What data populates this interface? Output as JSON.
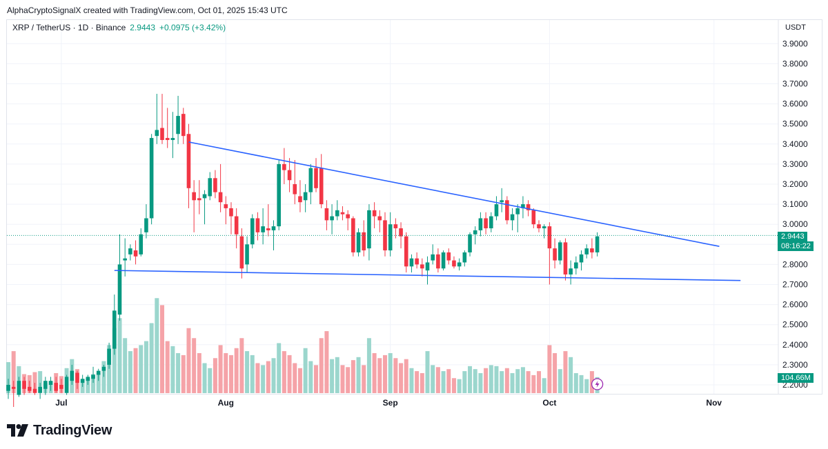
{
  "header": {
    "credit": "AlphaCryptoSignalX created with TradingView.com, Oct 01, 2025 15:43 UTC"
  },
  "legend": {
    "symbol": "XRP / TetherUS · 1D · Binance",
    "price": "2.9443",
    "change": "+0.0975 (+3.42%)"
  },
  "axis": {
    "currency": "USDT",
    "price_badge": "2.9443",
    "countdown_badge": "08:16:22",
    "volume_badge": "104.66M"
  },
  "branding": {
    "logo_text": "TradingView"
  },
  "colors": {
    "up": "#089981",
    "down": "#f23645",
    "up_volume": "#9bd6cd",
    "down_volume": "#f5a3a8",
    "trendline": "#2962ff",
    "grid": "#f0f3fa"
  },
  "chart_data": {
    "type": "candlestick",
    "title": "XRP / TetherUS · 1D · Binance",
    "y_ticks": [
      "3.9000",
      "3.8000",
      "3.7000",
      "3.6000",
      "3.5000",
      "3.4000",
      "3.3000",
      "3.2000",
      "3.1000",
      "3.0000",
      "2.9000",
      "2.8000",
      "2.7000",
      "2.6000",
      "2.5000",
      "2.4000",
      "2.3000",
      "2.2000"
    ],
    "x_ticks": [
      "Jul",
      "Aug",
      "Sep",
      "Oct",
      "Nov"
    ],
    "ylim": [
      2.2,
      3.95
    ],
    "start_date": "2025-06-21",
    "candles": [
      {
        "date": "2025-06-21",
        "o": 2.17,
        "h": 2.23,
        "l": 2.13,
        "c": 2.2,
        "v": 31
      },
      {
        "date": "2025-06-22",
        "o": 2.19,
        "h": 2.22,
        "l": 2.09,
        "c": 2.18,
        "v": 42
      },
      {
        "date": "2025-06-23",
        "o": 2.15,
        "h": 2.24,
        "l": 2.14,
        "c": 2.22,
        "v": 27
      },
      {
        "date": "2025-06-24",
        "o": 2.22,
        "h": 2.24,
        "l": 2.15,
        "c": 2.18,
        "v": 19
      },
      {
        "date": "2025-06-25",
        "o": 2.19,
        "h": 2.22,
        "l": 2.16,
        "c": 2.17,
        "v": 18
      },
      {
        "date": "2025-06-26",
        "o": 2.18,
        "h": 2.21,
        "l": 2.15,
        "c": 2.16,
        "v": 21
      },
      {
        "date": "2025-06-27",
        "o": 2.16,
        "h": 2.21,
        "l": 2.13,
        "c": 2.19,
        "v": 22
      },
      {
        "date": "2025-06-28",
        "o": 2.18,
        "h": 2.24,
        "l": 2.15,
        "c": 2.22,
        "v": 10
      },
      {
        "date": "2025-06-29",
        "o": 2.2,
        "h": 2.24,
        "l": 2.17,
        "c": 2.22,
        "v": 12
      },
      {
        "date": "2025-06-30",
        "o": 2.21,
        "h": 2.24,
        "l": 2.16,
        "c": 2.17,
        "v": 20
      },
      {
        "date": "2025-07-01",
        "o": 2.2,
        "h": 2.23,
        "l": 2.16,
        "c": 2.18,
        "v": 17
      },
      {
        "date": "2025-07-02",
        "o": 2.16,
        "h": 2.25,
        "l": 2.15,
        "c": 2.24,
        "v": 25
      },
      {
        "date": "2025-07-03",
        "o": 2.22,
        "h": 2.3,
        "l": 2.2,
        "c": 2.27,
        "v": 34
      },
      {
        "date": "2025-07-04",
        "o": 2.26,
        "h": 2.27,
        "l": 2.18,
        "c": 2.21,
        "v": 24
      },
      {
        "date": "2025-07-05",
        "o": 2.21,
        "h": 2.25,
        "l": 2.19,
        "c": 2.23,
        "v": 14
      },
      {
        "date": "2025-07-06",
        "o": 2.22,
        "h": 2.25,
        "l": 2.2,
        "c": 2.24,
        "v": 15
      },
      {
        "date": "2025-07-07",
        "o": 2.23,
        "h": 2.29,
        "l": 2.21,
        "c": 2.25,
        "v": 19
      },
      {
        "date": "2025-07-08",
        "o": 2.25,
        "h": 2.28,
        "l": 2.22,
        "c": 2.27,
        "v": 20
      },
      {
        "date": "2025-07-09",
        "o": 2.27,
        "h": 2.3,
        "l": 2.24,
        "c": 2.29,
        "v": 32
      },
      {
        "date": "2025-07-10",
        "o": 2.3,
        "h": 2.41,
        "l": 2.28,
        "c": 2.38,
        "v": 48
      },
      {
        "date": "2025-07-11",
        "o": 2.38,
        "h": 2.65,
        "l": 2.35,
        "c": 2.57,
        "v": 65
      },
      {
        "date": "2025-07-12",
        "o": 2.55,
        "h": 2.95,
        "l": 2.52,
        "c": 2.8,
        "v": 75
      },
      {
        "date": "2025-07-13",
        "o": 2.82,
        "h": 2.93,
        "l": 2.74,
        "c": 2.83,
        "v": 55
      },
      {
        "date": "2025-07-14",
        "o": 2.85,
        "h": 2.9,
        "l": 2.82,
        "c": 2.88,
        "v": 42
      },
      {
        "date": "2025-07-15",
        "o": 2.87,
        "h": 2.92,
        "l": 2.8,
        "c": 2.84,
        "v": 45
      },
      {
        "date": "2025-07-16",
        "o": 2.85,
        "h": 2.98,
        "l": 2.84,
        "c": 2.95,
        "v": 48
      },
      {
        "date": "2025-07-17",
        "o": 2.96,
        "h": 3.1,
        "l": 2.93,
        "c": 3.03,
        "v": 52
      },
      {
        "date": "2025-07-18",
        "o": 3.03,
        "h": 3.45,
        "l": 3.0,
        "c": 3.43,
        "v": 70
      },
      {
        "date": "2025-07-19",
        "o": 3.44,
        "h": 3.65,
        "l": 3.4,
        "c": 3.47,
        "v": 95
      },
      {
        "date": "2025-07-20",
        "o": 3.48,
        "h": 3.65,
        "l": 3.4,
        "c": 3.42,
        "v": 88
      },
      {
        "date": "2025-07-21",
        "o": 3.43,
        "h": 3.58,
        "l": 3.38,
        "c": 3.42,
        "v": 52
      },
      {
        "date": "2025-07-22",
        "o": 3.42,
        "h": 3.56,
        "l": 3.33,
        "c": 3.43,
        "v": 47
      },
      {
        "date": "2025-07-23",
        "o": 3.45,
        "h": 3.64,
        "l": 3.4,
        "c": 3.54,
        "v": 40
      },
      {
        "date": "2025-07-24",
        "o": 3.55,
        "h": 3.58,
        "l": 3.4,
        "c": 3.44,
        "v": 38
      },
      {
        "date": "2025-07-25",
        "o": 3.45,
        "h": 3.5,
        "l": 3.08,
        "c": 3.18,
        "v": 65
      },
      {
        "date": "2025-07-26",
        "o": 3.16,
        "h": 3.22,
        "l": 2.96,
        "c": 3.12,
        "v": 55
      },
      {
        "date": "2025-07-27",
        "o": 3.13,
        "h": 3.22,
        "l": 3.05,
        "c": 3.12,
        "v": 40
      },
      {
        "date": "2025-07-28",
        "o": 3.13,
        "h": 3.17,
        "l": 3.0,
        "c": 3.15,
        "v": 30
      },
      {
        "date": "2025-07-29",
        "o": 3.14,
        "h": 3.26,
        "l": 3.12,
        "c": 3.23,
        "v": 25
      },
      {
        "date": "2025-07-30",
        "o": 3.23,
        "h": 3.27,
        "l": 3.13,
        "c": 3.16,
        "v": 35
      },
      {
        "date": "2025-07-31",
        "o": 3.16,
        "h": 3.3,
        "l": 3.06,
        "c": 3.11,
        "v": 48
      },
      {
        "date": "2025-08-01",
        "o": 3.1,
        "h": 3.14,
        "l": 3.0,
        "c": 3.08,
        "v": 40
      },
      {
        "date": "2025-08-02",
        "o": 3.08,
        "h": 3.11,
        "l": 2.95,
        "c": 3.04,
        "v": 38
      },
      {
        "date": "2025-08-03",
        "o": 3.04,
        "h": 3.08,
        "l": 2.88,
        "c": 2.95,
        "v": 45
      },
      {
        "date": "2025-08-04",
        "o": 2.94,
        "h": 2.98,
        "l": 2.73,
        "c": 2.78,
        "v": 55
      },
      {
        "date": "2025-08-05",
        "o": 2.8,
        "h": 2.94,
        "l": 2.76,
        "c": 2.9,
        "v": 42
      },
      {
        "date": "2025-08-06",
        "o": 2.9,
        "h": 3.05,
        "l": 2.88,
        "c": 3.03,
        "v": 38
      },
      {
        "date": "2025-08-07",
        "o": 3.03,
        "h": 3.06,
        "l": 2.92,
        "c": 2.96,
        "v": 30
      },
      {
        "date": "2025-08-08",
        "o": 2.96,
        "h": 3.08,
        "l": 2.9,
        "c": 2.99,
        "v": 28
      },
      {
        "date": "2025-08-09",
        "o": 2.98,
        "h": 3.1,
        "l": 2.94,
        "c": 2.97,
        "v": 32
      },
      {
        "date": "2025-08-10",
        "o": 2.97,
        "h": 3.02,
        "l": 2.87,
        "c": 2.99,
        "v": 35
      },
      {
        "date": "2025-08-11",
        "o": 2.99,
        "h": 3.32,
        "l": 2.97,
        "c": 3.3,
        "v": 50
      },
      {
        "date": "2025-08-12",
        "o": 3.3,
        "h": 3.38,
        "l": 3.2,
        "c": 3.27,
        "v": 42
      },
      {
        "date": "2025-08-13",
        "o": 3.27,
        "h": 3.33,
        "l": 3.16,
        "c": 3.22,
        "v": 38
      },
      {
        "date": "2025-08-14",
        "o": 3.2,
        "h": 3.32,
        "l": 3.1,
        "c": 3.15,
        "v": 30
      },
      {
        "date": "2025-08-15",
        "o": 3.14,
        "h": 3.22,
        "l": 3.06,
        "c": 3.11,
        "v": 25
      },
      {
        "date": "2025-08-16",
        "o": 3.12,
        "h": 3.2,
        "l": 3.06,
        "c": 3.16,
        "v": 45
      },
      {
        "date": "2025-08-17",
        "o": 3.16,
        "h": 3.3,
        "l": 3.1,
        "c": 3.28,
        "v": 32
      },
      {
        "date": "2025-08-18",
        "o": 3.28,
        "h": 3.33,
        "l": 3.16,
        "c": 3.18,
        "v": 28
      },
      {
        "date": "2025-08-19",
        "o": 3.28,
        "h": 3.35,
        "l": 3.08,
        "c": 3.1,
        "v": 55
      },
      {
        "date": "2025-08-20",
        "o": 3.08,
        "h": 3.12,
        "l": 2.97,
        "c": 3.02,
        "v": 62
      },
      {
        "date": "2025-08-21",
        "o": 3.02,
        "h": 3.1,
        "l": 2.95,
        "c": 3.04,
        "v": 34
      },
      {
        "date": "2025-08-22",
        "o": 3.04,
        "h": 3.12,
        "l": 3.02,
        "c": 3.07,
        "v": 36
      },
      {
        "date": "2025-08-23",
        "o": 3.06,
        "h": 3.09,
        "l": 3.02,
        "c": 3.05,
        "v": 28
      },
      {
        "date": "2025-08-24",
        "o": 3.05,
        "h": 3.07,
        "l": 2.97,
        "c": 3.03,
        "v": 26
      },
      {
        "date": "2025-08-25",
        "o": 3.03,
        "h": 3.04,
        "l": 2.84,
        "c": 2.86,
        "v": 33
      },
      {
        "date": "2025-08-26",
        "o": 2.86,
        "h": 2.98,
        "l": 2.84,
        "c": 2.96,
        "v": 36
      },
      {
        "date": "2025-08-27",
        "o": 2.96,
        "h": 3.02,
        "l": 2.84,
        "c": 2.87,
        "v": 28
      },
      {
        "date": "2025-08-28",
        "o": 2.88,
        "h": 3.1,
        "l": 2.82,
        "c": 3.07,
        "v": 55
      },
      {
        "date": "2025-08-29",
        "o": 3.07,
        "h": 3.11,
        "l": 2.98,
        "c": 3.04,
        "v": 40
      },
      {
        "date": "2025-08-30",
        "o": 3.04,
        "h": 3.07,
        "l": 2.96,
        "c": 3.02,
        "v": 35
      },
      {
        "date": "2025-08-31",
        "o": 3.02,
        "h": 3.06,
        "l": 2.84,
        "c": 2.87,
        "v": 38
      },
      {
        "date": "2025-09-01",
        "o": 2.87,
        "h": 3.06,
        "l": 2.84,
        "c": 3.0,
        "v": 40
      },
      {
        "date": "2025-09-02",
        "o": 3.0,
        "h": 3.03,
        "l": 2.93,
        "c": 2.98,
        "v": 35
      },
      {
        "date": "2025-09-03",
        "o": 2.98,
        "h": 3.01,
        "l": 2.88,
        "c": 2.94,
        "v": 30
      },
      {
        "date": "2025-09-04",
        "o": 2.94,
        "h": 2.96,
        "l": 2.76,
        "c": 2.79,
        "v": 34
      },
      {
        "date": "2025-09-05",
        "o": 2.79,
        "h": 2.85,
        "l": 2.76,
        "c": 2.83,
        "v": 25
      },
      {
        "date": "2025-09-06",
        "o": 2.83,
        "h": 2.86,
        "l": 2.78,
        "c": 2.8,
        "v": 22
      },
      {
        "date": "2025-09-07",
        "o": 2.8,
        "h": 2.83,
        "l": 2.74,
        "c": 2.78,
        "v": 20
      },
      {
        "date": "2025-09-08",
        "o": 2.77,
        "h": 2.84,
        "l": 2.7,
        "c": 2.81,
        "v": 42
      },
      {
        "date": "2025-09-09",
        "o": 2.82,
        "h": 2.9,
        "l": 2.8,
        "c": 2.85,
        "v": 28
      },
      {
        "date": "2025-09-10",
        "o": 2.85,
        "h": 2.88,
        "l": 2.76,
        "c": 2.78,
        "v": 26
      },
      {
        "date": "2025-09-11",
        "o": 2.78,
        "h": 2.87,
        "l": 2.77,
        "c": 2.86,
        "v": 22
      },
      {
        "date": "2025-09-12",
        "o": 2.86,
        "h": 2.88,
        "l": 2.8,
        "c": 2.82,
        "v": 24
      },
      {
        "date": "2025-09-13",
        "o": 2.82,
        "h": 2.84,
        "l": 2.78,
        "c": 2.79,
        "v": 15
      },
      {
        "date": "2025-09-14",
        "o": 2.79,
        "h": 2.83,
        "l": 2.77,
        "c": 2.81,
        "v": 14
      },
      {
        "date": "2025-09-15",
        "o": 2.81,
        "h": 2.87,
        "l": 2.79,
        "c": 2.86,
        "v": 22
      },
      {
        "date": "2025-09-16",
        "o": 2.86,
        "h": 2.96,
        "l": 2.84,
        "c": 2.95,
        "v": 27
      },
      {
        "date": "2025-09-17",
        "o": 2.95,
        "h": 2.99,
        "l": 2.9,
        "c": 2.97,
        "v": 24
      },
      {
        "date": "2025-09-18",
        "o": 2.97,
        "h": 3.06,
        "l": 2.94,
        "c": 3.03,
        "v": 20
      },
      {
        "date": "2025-09-19",
        "o": 3.03,
        "h": 3.06,
        "l": 2.95,
        "c": 2.98,
        "v": 25
      },
      {
        "date": "2025-09-20",
        "o": 2.98,
        "h": 3.06,
        "l": 2.96,
        "c": 3.04,
        "v": 28
      },
      {
        "date": "2025-09-21",
        "o": 3.04,
        "h": 3.14,
        "l": 3.02,
        "c": 3.1,
        "v": 27
      },
      {
        "date": "2025-09-22",
        "o": 3.11,
        "h": 3.18,
        "l": 3.06,
        "c": 3.12,
        "v": 22
      },
      {
        "date": "2025-09-23",
        "o": 3.12,
        "h": 3.14,
        "l": 3.0,
        "c": 3.02,
        "v": 25
      },
      {
        "date": "2025-09-24",
        "o": 3.02,
        "h": 3.08,
        "l": 2.97,
        "c": 3.05,
        "v": 20
      },
      {
        "date": "2025-09-25",
        "o": 3.05,
        "h": 3.1,
        "l": 2.96,
        "c": 3.08,
        "v": 24
      },
      {
        "date": "2025-09-26",
        "o": 3.08,
        "h": 3.14,
        "l": 3.03,
        "c": 3.1,
        "v": 26
      },
      {
        "date": "2025-09-27",
        "o": 3.1,
        "h": 3.12,
        "l": 3.04,
        "c": 3.07,
        "v": 22
      },
      {
        "date": "2025-09-28",
        "o": 3.07,
        "h": 3.08,
        "l": 2.98,
        "c": 3.0,
        "v": 18
      },
      {
        "date": "2025-09-29",
        "o": 3.0,
        "h": 3.02,
        "l": 2.96,
        "c": 2.98,
        "v": 22
      },
      {
        "date": "2025-09-30",
        "o": 2.98,
        "h": 3.0,
        "l": 2.93,
        "c": 2.99,
        "v": 15
      },
      {
        "date": "2025-10-01",
        "o": 2.99,
        "h": 3.01,
        "l": 2.7,
        "c": 2.88,
        "v": 48
      },
      {
        "date": "2025-10-02",
        "o": 2.88,
        "h": 2.93,
        "l": 2.78,
        "c": 2.82,
        "v": 40
      },
      {
        "date": "2025-10-03",
        "o": 2.82,
        "h": 2.92,
        "l": 2.8,
        "c": 2.91,
        "v": 24
      },
      {
        "date": "2025-10-04",
        "o": 2.91,
        "h": 2.93,
        "l": 2.72,
        "c": 2.75,
        "v": 42
      },
      {
        "date": "2025-10-05",
        "o": 2.75,
        "h": 2.82,
        "l": 2.7,
        "c": 2.78,
        "v": 36
      },
      {
        "date": "2025-10-06",
        "o": 2.78,
        "h": 2.84,
        "l": 2.75,
        "c": 2.81,
        "v": 20
      },
      {
        "date": "2025-10-07",
        "o": 2.81,
        "h": 2.87,
        "l": 2.77,
        "c": 2.85,
        "v": 18
      },
      {
        "date": "2025-10-08",
        "o": 2.85,
        "h": 2.9,
        "l": 2.83,
        "c": 2.88,
        "v": 14
      },
      {
        "date": "2025-10-09",
        "o": 2.88,
        "h": 2.93,
        "l": 2.83,
        "c": 2.86,
        "v": 22
      },
      {
        "date": "2025-10-10",
        "o": 2.86,
        "h": 2.96,
        "l": 2.84,
        "c": 2.94,
        "v": 16
      }
    ],
    "trendlines": [
      {
        "name": "Upper trendline",
        "x1": "2025-07-25",
        "y1": 3.41,
        "x2": "2025-11-02",
        "y2": 2.89
      },
      {
        "name": "Lower trendline",
        "x1": "2025-07-11",
        "y1": 2.77,
        "x2": "2025-11-06",
        "y2": 2.72
      }
    ],
    "volume_label": "104.66M"
  }
}
